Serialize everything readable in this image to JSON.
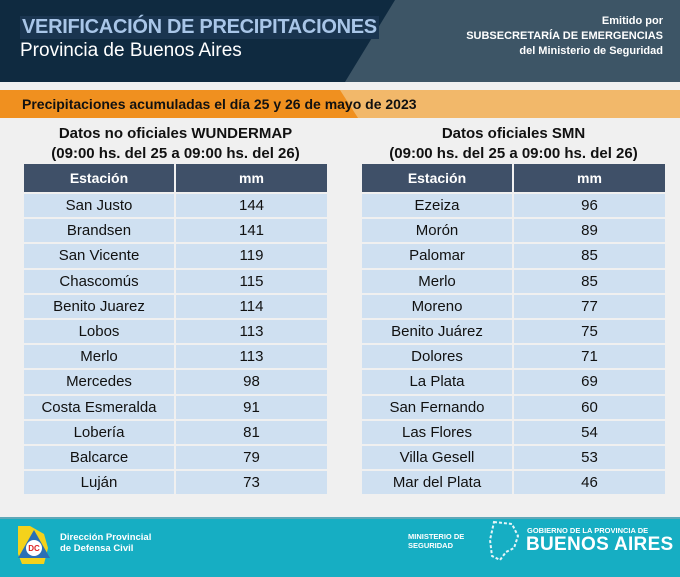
{
  "header": {
    "title": "VERIFICACIÓN DE PRECIPITACIONES",
    "subtitle": "Provincia de Buenos Aires",
    "issued_by": [
      "Emitido por",
      "SUBSECRETARÍA DE EMERGENCIAS",
      "del Ministerio de Seguridad"
    ]
  },
  "banner": "Precipitaciones acumuladas el día 25 y 26 de mayo de 2023",
  "left": {
    "title": "Datos no oficiales WUNDERMAP",
    "period": "(09:00 hs. del 25 a 09:00 hs. del 26)",
    "columns": [
      "Estación",
      "mm"
    ],
    "rows": [
      [
        "San Justo",
        "144"
      ],
      [
        "Brandsen",
        "141"
      ],
      [
        "San Vicente",
        "119"
      ],
      [
        "Chascomús",
        "115"
      ],
      [
        "Benito Juarez",
        "114"
      ],
      [
        "Lobos",
        "113"
      ],
      [
        "Merlo",
        "113"
      ],
      [
        "Mercedes",
        "98"
      ],
      [
        "Costa Esmeralda",
        "91"
      ],
      [
        "Lobería",
        "81"
      ],
      [
        "Balcarce",
        "79"
      ],
      [
        "Luján",
        "73"
      ]
    ]
  },
  "right": {
    "title": "Datos oficiales SMN",
    "period": "(09:00 hs. del 25 a 09:00 hs. del 26)",
    "columns": [
      "Estación",
      "mm"
    ],
    "rows": [
      [
        "Ezeiza",
        "96"
      ],
      [
        "Morón",
        "89"
      ],
      [
        "Palomar",
        "85"
      ],
      [
        "Merlo",
        "85"
      ],
      [
        "Moreno",
        "77"
      ],
      [
        "Benito Juárez",
        "75"
      ],
      [
        "Dolores",
        "71"
      ],
      [
        "La Plata",
        "69"
      ],
      [
        "San Fernando",
        "60"
      ],
      [
        "Las Flores",
        "54"
      ],
      [
        "Villa Gesell",
        "53"
      ],
      [
        "Mar del Plata",
        "46"
      ]
    ]
  },
  "footer": {
    "dc_badge": "DC",
    "dc_name": [
      "Dirección Provincial",
      "de Defensa Civil"
    ],
    "ministry": [
      "MINISTERIO DE",
      "SEGURIDAD"
    ],
    "gov_small": "GOBIERNO DE LA PROVINCIA DE",
    "gov_big": "BUENOS AIRES"
  },
  "colors": {
    "navy": "#0f2a40",
    "slate": "#3d5566",
    "orange": "#f0901f",
    "table_header": "#3f5068",
    "row": "#cfe0f1",
    "footer": "#16aec3"
  }
}
